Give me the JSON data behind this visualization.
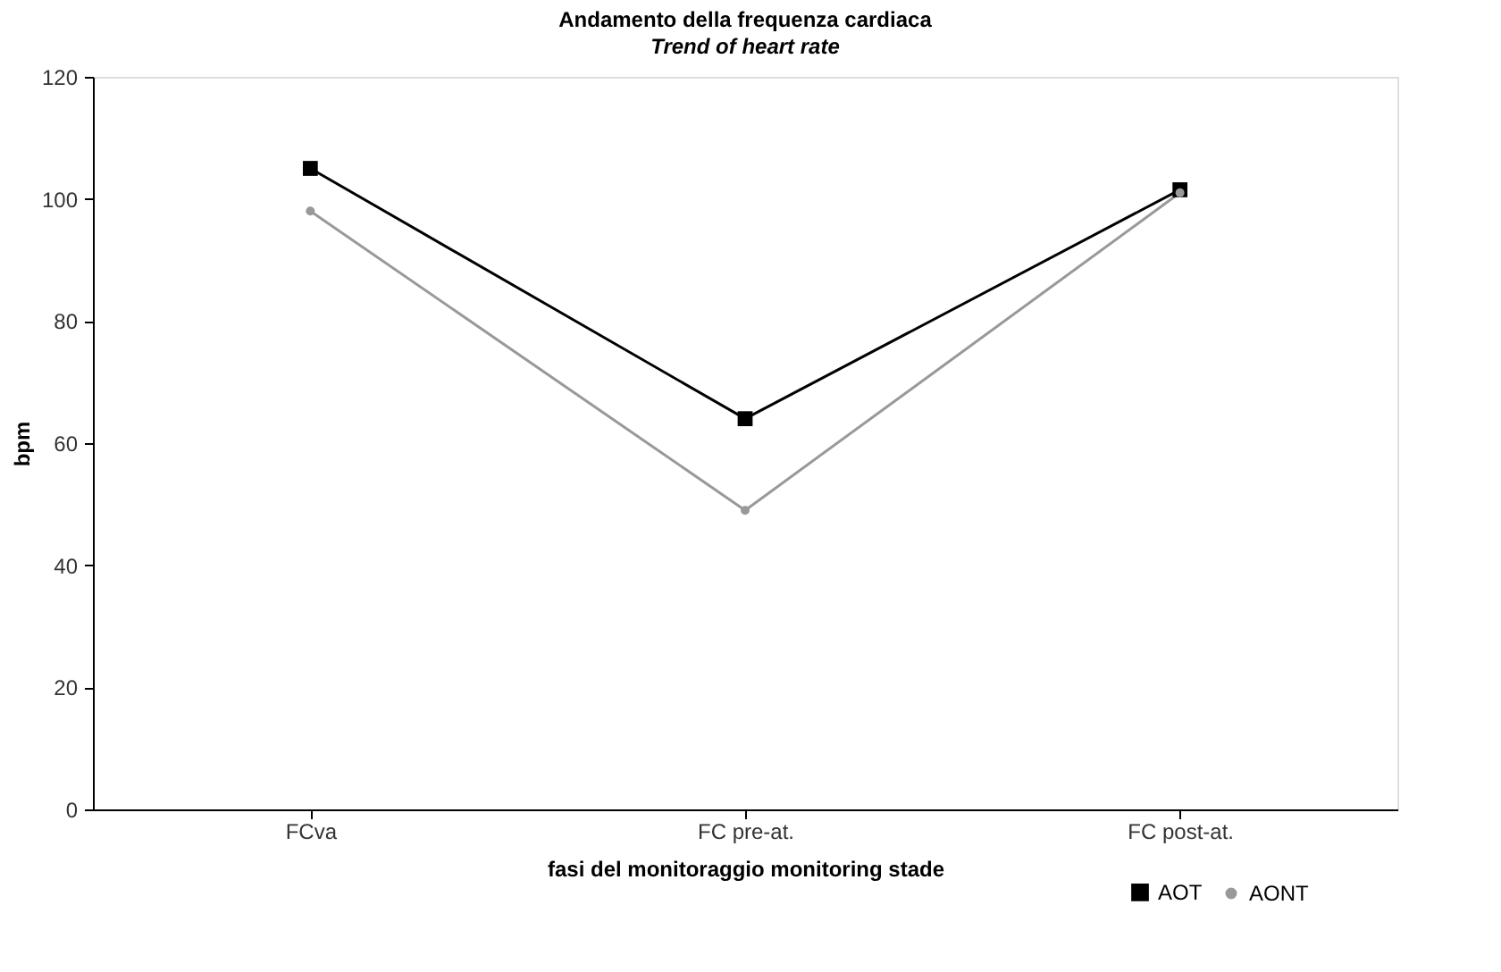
{
  "chart_data": {
    "type": "line",
    "title": "Andamento della frequenza cardiaca",
    "subtitle": "Trend of heart rate",
    "xlabel": "fasi del monitoraggio monitoring stade",
    "ylabel": "bpm",
    "categories": [
      "FCva",
      "FC pre-at.",
      "FC post-at."
    ],
    "series": [
      {
        "name": "AOT",
        "color": "#000000",
        "values": [
          105,
          64,
          101.5
        ],
        "marker": "square"
      },
      {
        "name": "AONT",
        "color": "#999999",
        "values": [
          98,
          49,
          101
        ],
        "marker": "circle"
      }
    ],
    "ylim": [
      0,
      120
    ],
    "yticks": [
      0,
      20,
      40,
      60,
      80,
      100,
      120
    ],
    "grid": false,
    "legend": "bottom right",
    "line_style": "solid"
  }
}
